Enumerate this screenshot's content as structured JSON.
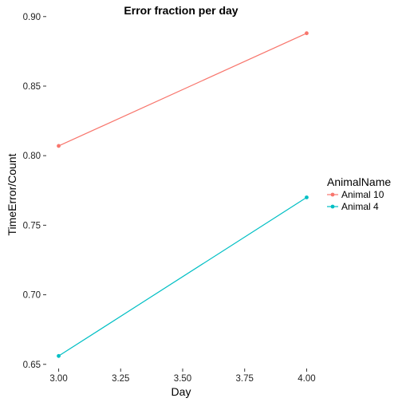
{
  "chart_data": {
    "type": "line",
    "title": "Error fraction per day",
    "xlabel": "Day",
    "ylabel": "TimeError/Count",
    "xlim": [
      2.95,
      4.05
    ],
    "ylim": [
      0.647,
      0.897
    ],
    "x_ticks": [
      3.0,
      3.25,
      3.5,
      3.75,
      4.0
    ],
    "x_tick_labels": [
      "3.00",
      "3.25",
      "3.50",
      "3.75",
      "4.00"
    ],
    "y_ticks": [
      0.65,
      0.7,
      0.75,
      0.8,
      0.85,
      0.9
    ],
    "y_tick_labels": [
      "0.65",
      "0.70",
      "0.75",
      "0.80",
      "0.85",
      "0.90"
    ],
    "grid": false,
    "legend": {
      "title": "AnimalName",
      "placement": "right"
    },
    "series": [
      {
        "name": "Animal 10",
        "color": "#F8766D",
        "x": [
          3.0,
          4.0
        ],
        "y": [
          0.807,
          0.888
        ]
      },
      {
        "name": "Animal 4",
        "color": "#00BFC4",
        "x": [
          3.0,
          4.0
        ],
        "y": [
          0.656,
          0.77
        ]
      }
    ]
  }
}
